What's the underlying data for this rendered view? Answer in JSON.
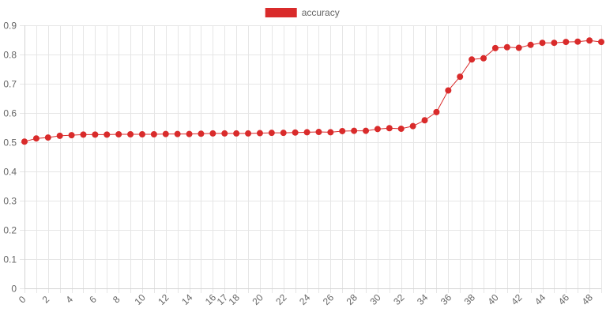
{
  "chart_data": {
    "type": "line",
    "title": "",
    "xlabel": "",
    "ylabel": "",
    "legend": "top-center",
    "grid": true,
    "x": [
      0,
      1,
      2,
      3,
      4,
      5,
      6,
      7,
      8,
      9,
      10,
      11,
      12,
      13,
      14,
      15,
      16,
      17,
      18,
      19,
      20,
      21,
      22,
      23,
      24,
      25,
      26,
      27,
      28,
      29,
      30,
      31,
      32,
      33,
      34,
      35,
      36,
      37,
      38,
      39,
      40,
      41,
      42,
      43,
      44,
      45,
      46,
      47,
      48,
      49
    ],
    "xlim": [
      0,
      49
    ],
    "ylim": [
      0,
      0.9
    ],
    "x_ticks": [
      "0",
      "2",
      "4",
      "6",
      "8",
      "10",
      "12",
      "14",
      "16",
      "17",
      "18",
      "20",
      "22",
      "24",
      "26",
      "28",
      "30",
      "32",
      "34",
      "36",
      "38",
      "40",
      "42",
      "44",
      "46",
      "48"
    ],
    "y_ticks": [
      "0",
      "0.1",
      "0.2",
      "0.3",
      "0.4",
      "0.5",
      "0.6",
      "0.7",
      "0.8",
      "0.9"
    ],
    "series": [
      {
        "name": "accuracy",
        "color": "#d92b2b",
        "values": [
          0.502,
          0.513,
          0.516,
          0.522,
          0.524,
          0.526,
          0.526,
          0.526,
          0.527,
          0.527,
          0.527,
          0.527,
          0.528,
          0.528,
          0.528,
          0.529,
          0.53,
          0.53,
          0.53,
          0.53,
          0.531,
          0.532,
          0.532,
          0.533,
          0.534,
          0.535,
          0.534,
          0.538,
          0.539,
          0.539,
          0.545,
          0.548,
          0.546,
          0.555,
          0.575,
          0.603,
          0.677,
          0.724,
          0.783,
          0.787,
          0.822,
          0.825,
          0.823,
          0.833,
          0.84,
          0.84,
          0.843,
          0.844,
          0.848,
          0.843
        ]
      }
    ]
  }
}
